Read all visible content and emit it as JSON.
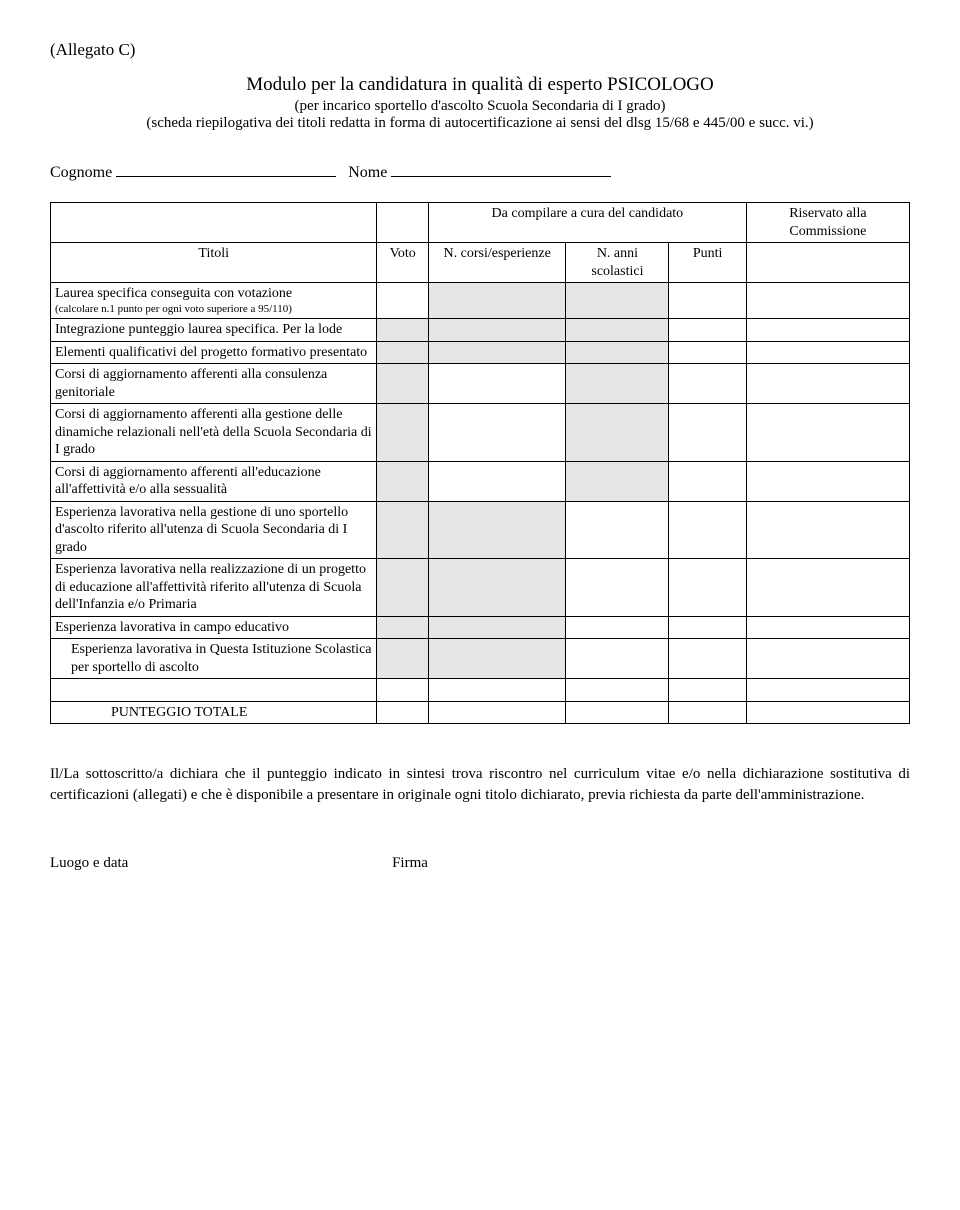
{
  "allegato": "(Allegato C)",
  "title": "Modulo per la candidatura in qualità di esperto PSICOLOGO",
  "subtitle1": "(per incarico sportello d'ascolto Scuola Secondaria di I grado)",
  "subtitle2": "(scheda riepilogativa dei titoli redatta in forma di autocertificazione ai sensi del dlsg 15/68 e 445/00 e succ. vi.)",
  "cognome_label": "Cognome",
  "nome_label": "Nome",
  "header": {
    "da_compilare": "Da compilare a cura del candidato",
    "riservato": "Riservato alla Commissione",
    "titoli": "Titoli",
    "voto": "Voto",
    "corsi": "N. corsi/esperienze",
    "anni": "N. anni scolastici",
    "punti": "Punti"
  },
  "rows": [
    {
      "label": "Laurea specifica conseguita con votazione",
      "note": "(calcolare n.1 punto per ogni voto superiore a 95/110)",
      "voto": true,
      "shaded_cols": [
        "corsi",
        "anni"
      ]
    },
    {
      "label": "Integrazione punteggio laurea specifica. Per la lode",
      "shaded_cols": [
        "voto",
        "corsi",
        "anni"
      ]
    },
    {
      "label": "Elementi qualificativi del progetto formativo presentato",
      "shaded_cols": [
        "voto",
        "corsi",
        "anni"
      ]
    },
    {
      "label": "Corsi di aggiornamento afferenti alla consulenza genitoriale",
      "shaded_cols": [
        "voto",
        "anni"
      ]
    },
    {
      "label": "Corsi di aggiornamento afferenti alla gestione delle dinamiche relazionali nell'età della Scuola Secondaria di I grado",
      "shaded_cols": [
        "voto",
        "anni"
      ]
    },
    {
      "label": "Corsi di aggiornamento afferenti all'educazione all'affettività e/o alla sessualità",
      "shaded_cols": [
        "voto",
        "anni"
      ]
    },
    {
      "label": "Esperienza lavorativa nella gestione di uno sportello d'ascolto riferito all'utenza di Scuola Secondaria di I grado",
      "shaded_cols": [
        "voto",
        "corsi"
      ]
    },
    {
      "label": "Esperienza lavorativa nella realizzazione di un progetto di educazione all'affettività  riferito all'utenza di Scuola dell'Infanzia e/o Primaria",
      "shaded_cols": [
        "voto",
        "corsi"
      ]
    },
    {
      "label": "Esperienza lavorativa in campo educativo",
      "shaded_cols": [
        "voto",
        "corsi"
      ]
    },
    {
      "label": "Esperienza lavorativa in Questa Istituzione Scolastica per sportello di ascolto",
      "indent": true,
      "shaded_cols": [
        "voto",
        "corsi"
      ]
    }
  ],
  "punteggio_totale": "PUNTEGGIO  TOTALE",
  "footer_text": "Il/La sottoscritto/a  dichiara che il punteggio indicato in sintesi trova riscontro nel curriculum vitae e/o nella dichiarazione sostitutiva di certificazioni (allegati) e che è disponibile a presentare in originale ogni titolo dichiarato, previa richiesta da parte dell'amministrazione.",
  "luogo_data": "Luogo e data",
  "firma": "Firma"
}
